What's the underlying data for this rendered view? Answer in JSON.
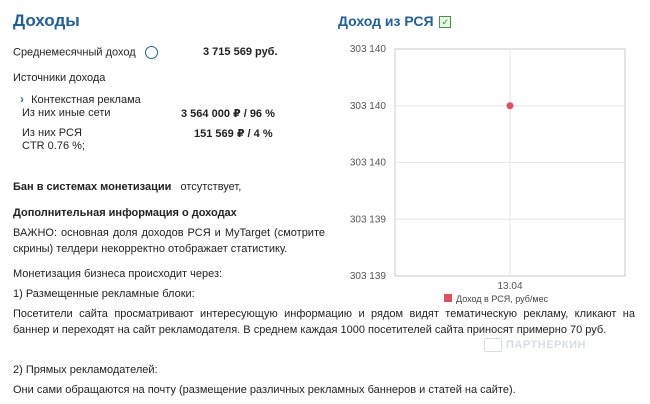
{
  "income": {
    "title": "Доходы",
    "monthly_label": "Среднемесячный доход",
    "help_glyph": "?",
    "monthly_value": "3 715 569 руб.",
    "sources_label": "Источники дохода",
    "context_ads_label": "Контекстная реклама",
    "other_networks_label": "Из них иные сети",
    "other_networks_value": "3 564 000 ₽  /  96 %",
    "rsya_label": "Из них РСЯ",
    "rsya_value": "151 569 ₽  /  4 %",
    "ctr_text": "CTR 0.76 %;",
    "ban_label": "Бан в системах монетизации",
    "ban_value": "отсутствует,",
    "extra_title": "Дополнительная информация о доходах",
    "p1": "ВАЖНО: основная доля доходов РСЯ и MyTarget (смотрите скрины) телдери некорректно отображает статистику.",
    "p2": "Монетизация бизнеса происходит через:",
    "p3": "1) Размещенные рекламные блоки:",
    "p4": "Посетители сайта просматривают интересующую информацию и рядом видят тематическую рекламу, кликают на баннер и переходят на сайт рекламодателя. В среднем каждая 1000 посетителей сайта приносят примерно 70 руб.",
    "p5": "2) Прямых рекламодателей:",
    "p6": "Они сами обращаются на почту (размещение различных рекламных баннеров и статей на сайте)."
  },
  "chart_title": "Доход из РСЯ",
  "check_glyph": "✓",
  "watermark": "ПАРТНЕРКИН",
  "colors": {
    "accent": "#1f5f9a",
    "point": "#e05060"
  },
  "chart_data": {
    "type": "scatter",
    "title": "Доход из РСЯ",
    "categories": [
      "13.04"
    ],
    "series": [
      {
        "name": "Доход в РСЯ, руб/мес",
        "values": [
          303140
        ]
      }
    ],
    "yticks": [
      "303 140",
      "303 140",
      "303 140",
      "303 139",
      "303 139"
    ],
    "ylim": [
      303139,
      303140
    ],
    "grid": true,
    "legend": "bottom"
  }
}
